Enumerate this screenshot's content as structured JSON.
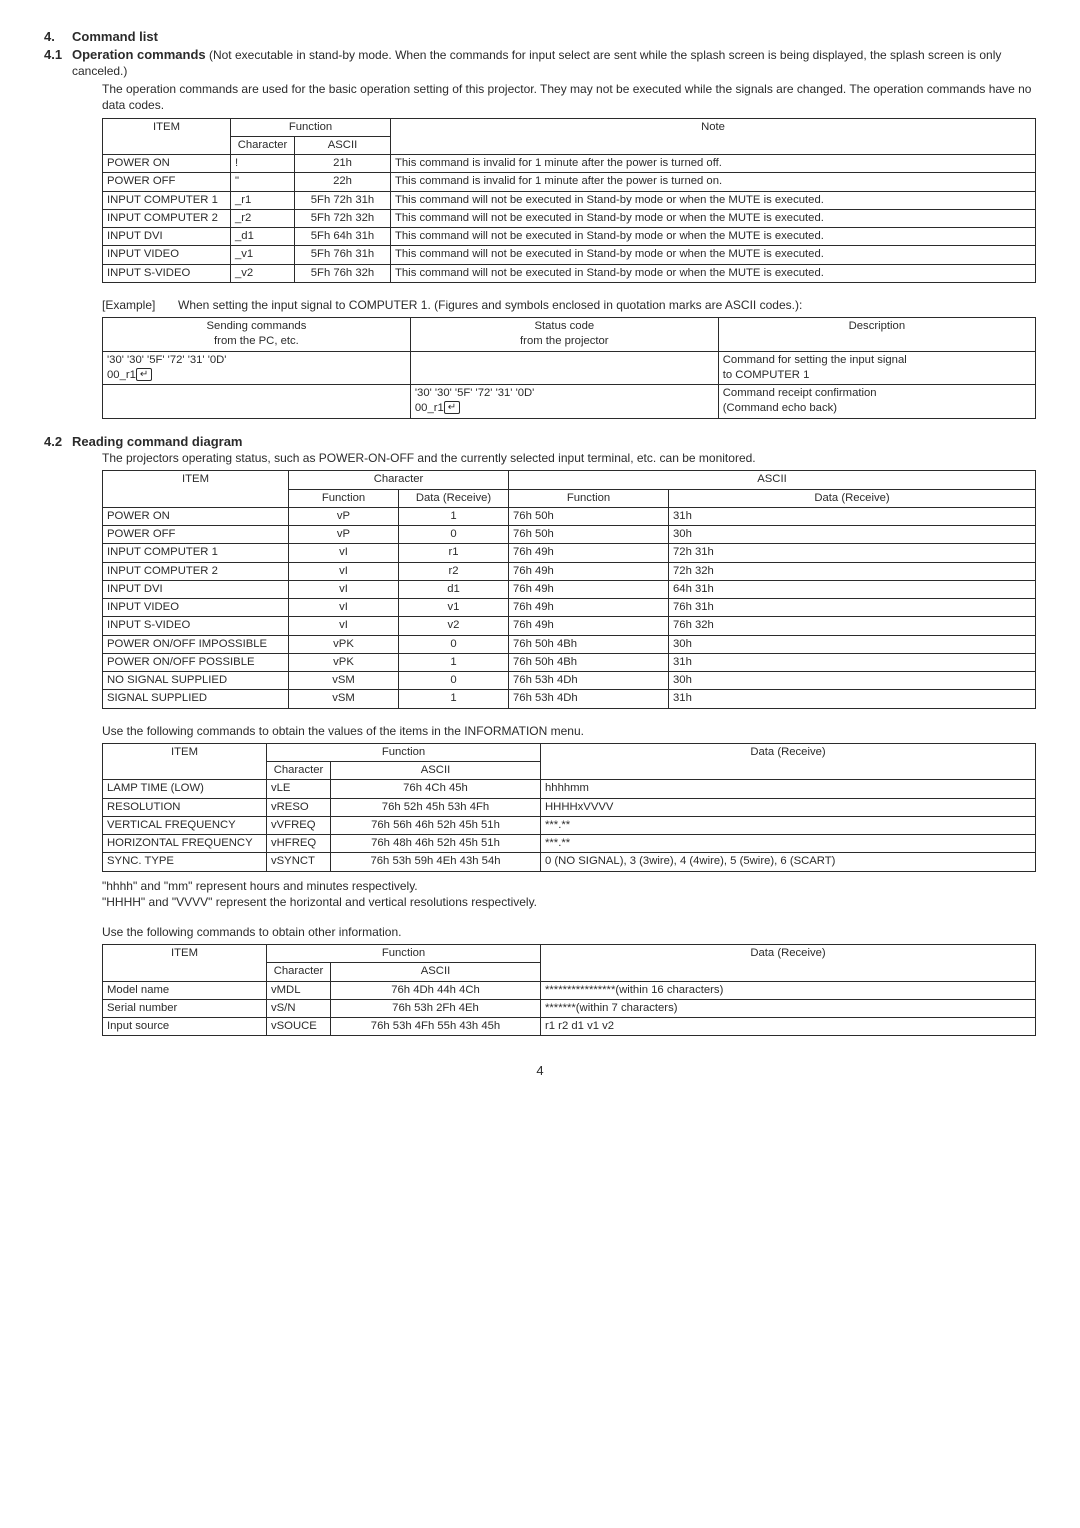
{
  "section": {
    "num": "4.",
    "title": "Command list",
    "sub_num": "4.1",
    "sub_title": "Operation commands",
    "sub_inline": " (Not executable in stand-by mode. When the commands for input select are sent while the splash screen is being displayed, the splash screen is only canceled.)",
    "para1": "The operation commands are used for the basic operation setting of this projector. They may not be executed while the signals are changed. The operation commands have no data codes."
  },
  "t1": {
    "h_item": "ITEM",
    "h_func": "Function",
    "h_char": "Character",
    "h_ascii": "ASCII",
    "h_note": "Note",
    "rows": [
      {
        "item": "POWER ON",
        "char": "!",
        "ascii": "21h",
        "note": "This command is invalid for 1 minute after the power is turned off."
      },
      {
        "item": "POWER OFF",
        "char": "\"",
        "ascii": "22h",
        "note": "This command is invalid for 1 minute after the power is turned on."
      },
      {
        "item": "INPUT COMPUTER 1",
        "char": "_r1",
        "ascii": "5Fh 72h 31h",
        "note": "This command will not be executed in Stand-by mode or when the MUTE is executed."
      },
      {
        "item": "INPUT COMPUTER 2",
        "char": "_r2",
        "ascii": "5Fh 72h 32h",
        "note": "This command will not be executed in Stand-by mode or when the MUTE is executed."
      },
      {
        "item": "INPUT DVI",
        "char": "_d1",
        "ascii": "5Fh 64h 31h",
        "note": "This command will not be executed in Stand-by mode or when the MUTE is executed."
      },
      {
        "item": "INPUT VIDEO",
        "char": "_v1",
        "ascii": "5Fh 76h 31h",
        "note": "This command will not be executed in Stand-by mode or when the MUTE is executed."
      },
      {
        "item": "INPUT S-VIDEO",
        "char": "_v2",
        "ascii": "5Fh 76h 32h",
        "note": "This command will not be executed in Stand-by mode or when the MUTE is executed."
      }
    ]
  },
  "example": {
    "label": "[Example]",
    "text": "When setting the input signal to COMPUTER 1. (Figures and symbols enclosed in quotation marks are ASCII codes.):"
  },
  "t2": {
    "h1a": "Sending commands",
    "h1b": "from the PC, etc.",
    "h2a": "Status code",
    "h2b": "from the projector",
    "h3": "Description",
    "r1_send_a": "'30' '30' '5F' '72' '31' '0D'",
    "r1_send_b": "00_r1",
    "r1_desc_a": "Command for setting the input signal",
    "r1_desc_b": "to COMPUTER 1",
    "r2_stat_a": "'30' '30' '5F' '72' '31' '0D'",
    "r2_stat_b": "00_r1",
    "r2_desc_a": "Command receipt confirmation",
    "r2_desc_b": "(Command echo back)"
  },
  "s42": {
    "num": "4.2",
    "title": "Reading command diagram",
    "para": "The projectors operating status, such as POWER-ON-OFF and the currently selected input terminal, etc. can be monitored."
  },
  "t3": {
    "h_item": "ITEM",
    "h_char": "Character",
    "h_ascii": "ASCII",
    "h_func": "Function",
    "h_data": "Data (Receive)",
    "rows": [
      {
        "item": "POWER ON",
        "cf": "vP",
        "cd": "1",
        "af": "76h  50h",
        "ad": "31h"
      },
      {
        "item": "POWER OFF",
        "cf": "vP",
        "cd": "0",
        "af": "76h  50h",
        "ad": "30h"
      },
      {
        "item": "INPUT COMPUTER 1",
        "cf": "vI",
        "cd": "r1",
        "af": "76h  49h",
        "ad": "72h 31h"
      },
      {
        "item": "INPUT COMPUTER 2",
        "cf": "vI",
        "cd": "r2",
        "af": "76h  49h",
        "ad": "72h 32h"
      },
      {
        "item": "INPUT DVI",
        "cf": "vI",
        "cd": "d1",
        "af": "76h  49h",
        "ad": "64h 31h"
      },
      {
        "item": "INPUT VIDEO",
        "cf": "vI",
        "cd": "v1",
        "af": "76h  49h",
        "ad": "76h 31h"
      },
      {
        "item": "INPUT S-VIDEO",
        "cf": "vI",
        "cd": "v2",
        "af": "76h  49h",
        "ad": "76h 32h"
      },
      {
        "item": "POWER ON/OFF IMPOSSIBLE",
        "cf": "vPK",
        "cd": "0",
        "af": "76h  50h  4Bh",
        "ad": "30h"
      },
      {
        "item": "POWER ON/OFF POSSIBLE",
        "cf": "vPK",
        "cd": "1",
        "af": "76h  50h  4Bh",
        "ad": "31h"
      },
      {
        "item": "NO SIGNAL SUPPLIED",
        "cf": "vSM",
        "cd": "0",
        "af": "76h  53h  4Dh",
        "ad": "30h"
      },
      {
        "item": "SIGNAL SUPPLIED",
        "cf": "vSM",
        "cd": "1",
        "af": "76h  53h  4Dh",
        "ad": "31h"
      }
    ]
  },
  "p_info1": "Use the following commands to obtain the values of the items in the INFORMATION menu.",
  "t4": {
    "h_item": "ITEM",
    "h_func": "Function",
    "h_char": "Character",
    "h_ascii": "ASCII",
    "h_data": "Data (Receive)",
    "rows": [
      {
        "item": "LAMP TIME (LOW)",
        "char": "vLE",
        "ascii": "76h  4Ch  45h",
        "data": "hhhhmm"
      },
      {
        "item": "RESOLUTION",
        "char": "vRESO",
        "ascii": "76h  52h  45h  53h  4Fh",
        "data": "HHHHxVVVV"
      },
      {
        "item": "VERTICAL FREQUENCY",
        "char": "vVFREQ",
        "ascii": "76h  56h  46h  52h  45h  51h",
        "data": "***.**"
      },
      {
        "item": "HORIZONTAL FREQUENCY",
        "char": "vHFREQ",
        "ascii": "76h  48h  46h  52h  45h  51h",
        "data": "***.**"
      },
      {
        "item": "SYNC. TYPE",
        "char": "vSYNCT",
        "ascii": "76h  53h  59h  4Eh  43h  54h",
        "data": "0 (NO SIGNAL), 3 (3wire),  4 (4wire), 5 (5wire), 6 (SCART)"
      }
    ]
  },
  "p_info2a": "\"hhhh\" and \"mm\" represent hours and minutes respectively.",
  "p_info2b": "\"HHHH\" and \"VVVV\" represent the horizontal and vertical resolutions respectively.",
  "p_info3": "Use the following commands to obtain other information.",
  "t5": {
    "h_item": "ITEM",
    "h_func": "Function",
    "h_char": "Character",
    "h_ascii": "ASCII",
    "h_data": "Data (Receive)",
    "rows": [
      {
        "item": "Model name",
        "char": "vMDL",
        "ascii": "76h  4Dh  44h  4Ch",
        "data": "****************(within 16 characters)"
      },
      {
        "item": "Serial number",
        "char": "vS/N",
        "ascii": "76h  53h  2Fh  4Eh",
        "data": "*******(within 7 characters)"
      },
      {
        "item": "Input source",
        "char": "vSOUCE",
        "ascii": "76h  53h  4Fh  55h  43h  45h",
        "data": "r1 r2 d1 v1 v2"
      }
    ]
  },
  "page": "4",
  "enter": "↵"
}
